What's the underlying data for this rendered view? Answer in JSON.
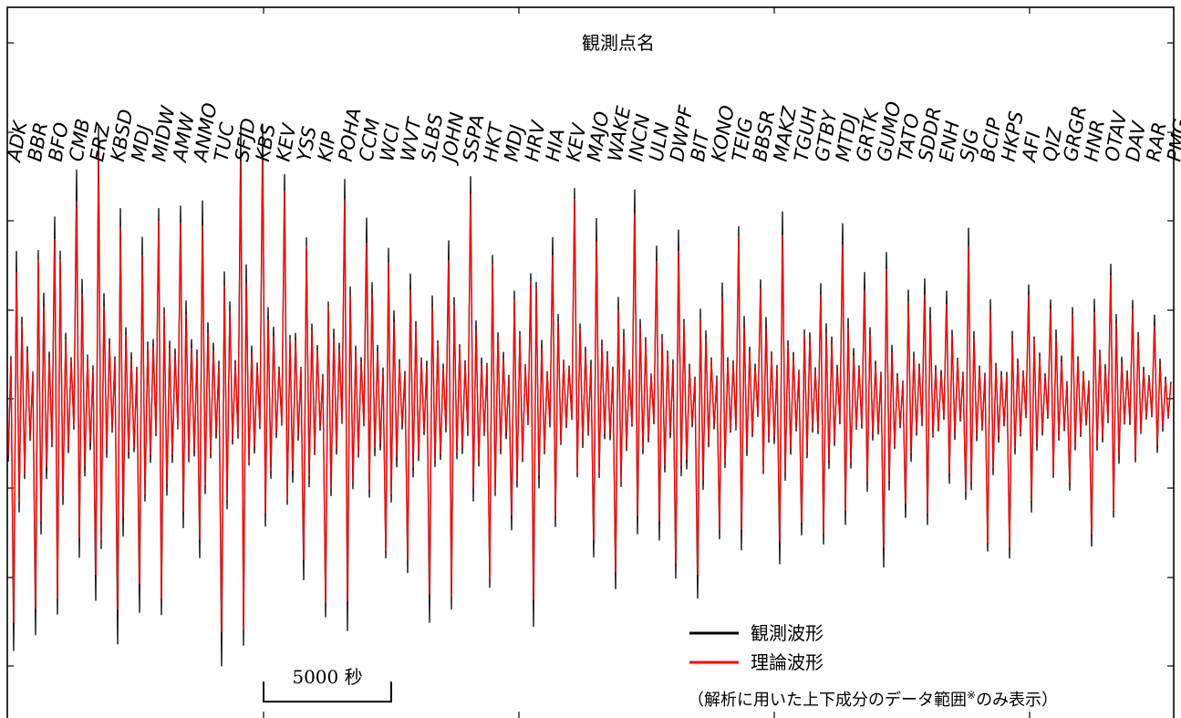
{
  "chart_data": {
    "type": "line",
    "title": "観測点名",
    "stations": [
      "ADK",
      "BBR",
      "BFO",
      "CMB",
      "ERZ",
      "KBSD",
      "MDJ",
      "MIDW",
      "AMW",
      "ANMO",
      "TUC",
      "SFJD",
      "KBS",
      "KEV",
      "YSS",
      "KIP",
      "POHA",
      "CCM",
      "WCI",
      "WVT",
      "SLBS",
      "JOHN",
      "SSPA",
      "HKT",
      "MDJ",
      "HRV",
      "HIA",
      "KEV",
      "MAJO",
      "WAKE",
      "INCN",
      "ULN",
      "DWPF",
      "BIT",
      "KONO",
      "TEIG",
      "BBSR",
      "MAKZ",
      "TGUH",
      "GTBY",
      "MTDJ",
      "GRTK",
      "GUMO",
      "TATO",
      "SDDR",
      "ENH",
      "SJG",
      "BCIP",
      "HKPS",
      "AFI",
      "QIZ",
      "GRGR",
      "HNR",
      "OTAV",
      "DAV",
      "RAR",
      "PMG"
    ],
    "series": [
      {
        "name": "観測波形",
        "color": "#000000"
      },
      {
        "name": "理論波形",
        "color": "#ff0000"
      }
    ],
    "legend_position": "bottom-right",
    "legend_note": "（解析に用いた上下成分のデータ範囲",
    "legend_note_mark": "※",
    "legend_note_end": "のみ表示）",
    "scale_bar": {
      "value": 5000,
      "label": "5000 秒"
    }
  }
}
